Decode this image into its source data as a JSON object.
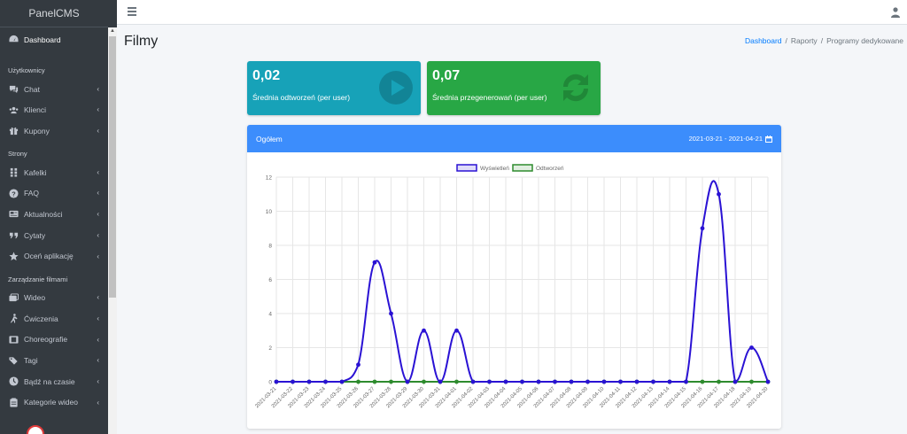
{
  "brand": "PanelCMS",
  "sidebar": {
    "sections": [
      {
        "header": "",
        "items": [
          {
            "label": "Dashboard",
            "icon": "tachometer-icon",
            "chevron": false
          }
        ]
      },
      {
        "header": "Użytkownicy",
        "items": [
          {
            "label": "Chat",
            "icon": "comments-icon",
            "chevron": true
          },
          {
            "label": "Klienci",
            "icon": "users-icon",
            "chevron": true
          },
          {
            "label": "Kupony",
            "icon": "gift-icon",
            "chevron": true
          }
        ]
      },
      {
        "header": "Strony",
        "items": [
          {
            "label": "Kafelki",
            "icon": "grip-icon",
            "chevron": true
          },
          {
            "label": "FAQ",
            "icon": "question-circle-icon",
            "chevron": true
          },
          {
            "label": "Aktualności",
            "icon": "newspaper-icon",
            "chevron": true
          },
          {
            "label": "Cytaty",
            "icon": "quote-icon",
            "chevron": true
          },
          {
            "label": "Oceń aplikację",
            "icon": "star-icon",
            "chevron": true
          }
        ]
      },
      {
        "header": "Zarządzanie filmami",
        "items": [
          {
            "label": "Wideo",
            "icon": "video-icon",
            "chevron": true
          },
          {
            "label": "Ćwiczenia",
            "icon": "running-icon",
            "chevron": true
          },
          {
            "label": "Choreografie",
            "icon": "film-icon",
            "chevron": true
          },
          {
            "label": "Tagi",
            "icon": "tags-icon",
            "chevron": true
          },
          {
            "label": "Bądź na czasie",
            "icon": "clock-icon",
            "chevron": true
          },
          {
            "label": "Kategorie wideo",
            "icon": "clipboard-icon",
            "chevron": true
          }
        ]
      }
    ]
  },
  "page": {
    "title": "Filmy"
  },
  "breadcrumb": {
    "items": [
      "Dashboard",
      "Raporty",
      "Programy dedykowane"
    ],
    "separator": "/"
  },
  "boxes": [
    {
      "value": "0,02",
      "label": "Średnia odtworzeń (per user)",
      "icon": "play-circle-icon",
      "color": "#17a2b8"
    },
    {
      "value": "0,07",
      "label": "Średnia przegenerowań (per user)",
      "icon": "sync-icon",
      "color": "#28a745"
    }
  ],
  "card": {
    "title": "Ogółem",
    "daterange": "2021-03-21 - 2021-04-21",
    "header_color": "#3c8dfc"
  },
  "chart_data": {
    "type": "line",
    "categories": [
      "2021-03-21",
      "2021-03-22",
      "2021-03-23",
      "2021-03-24",
      "2021-03-25",
      "2021-03-26",
      "2021-03-27",
      "2021-03-28",
      "2021-03-29",
      "2021-03-30",
      "2021-03-31",
      "2021-04-01",
      "2021-04-02",
      "2021-04-03",
      "2021-04-04",
      "2021-04-05",
      "2021-04-06",
      "2021-04-07",
      "2021-04-08",
      "2021-04-09",
      "2021-04-10",
      "2021-04-11",
      "2021-04-12",
      "2021-04-13",
      "2021-04-14",
      "2021-04-15",
      "2021-04-16",
      "2021-04-17",
      "2021-04-18",
      "2021-04-19",
      "2021-04-20"
    ],
    "series": [
      {
        "name": "Wyświetleń",
        "color": "#2a12d4",
        "values": [
          0,
          0,
          0,
          0,
          0,
          1,
          7,
          4,
          0,
          3,
          0,
          3,
          0,
          0,
          0,
          0,
          0,
          0,
          0,
          0,
          0,
          0,
          0,
          0,
          0,
          0,
          9,
          11,
          0,
          2,
          0
        ]
      },
      {
        "name": "Odtworzeń",
        "color": "#2e8b2e",
        "values": [
          0,
          0,
          0,
          0,
          0,
          0,
          0,
          0,
          0,
          0,
          0,
          0,
          0,
          0,
          0,
          0,
          0,
          0,
          0,
          0,
          0,
          0,
          0,
          0,
          0,
          0,
          0,
          0,
          0,
          0,
          0
        ]
      }
    ],
    "ylim": [
      0,
      12
    ],
    "yticks": [
      0,
      2,
      4,
      6,
      8,
      10,
      12
    ],
    "legend": "top",
    "grid": true
  }
}
